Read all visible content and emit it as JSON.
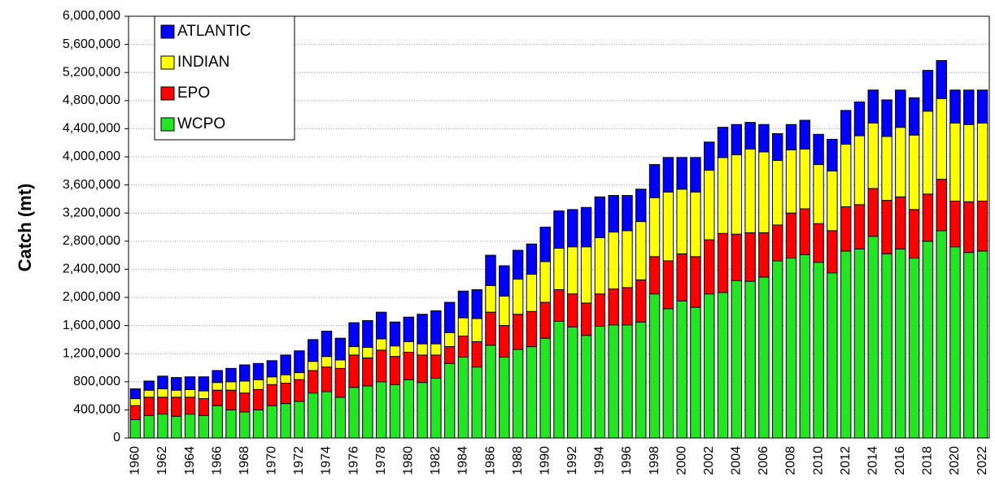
{
  "chart_data": {
    "type": "stacked_bar",
    "y_label": "Catch (mt)",
    "categories": [
      "1960",
      null,
      "1962",
      null,
      "1964",
      null,
      "1966",
      null,
      "1968",
      null,
      "1970",
      null,
      "1972",
      null,
      "1974",
      null,
      "1976",
      null,
      "1978",
      null,
      "1980",
      null,
      "1982",
      null,
      "1984",
      null,
      "1986",
      null,
      "1988",
      null,
      "1990",
      null,
      "1992",
      null,
      "1994",
      null,
      "1996",
      null,
      "1998",
      null,
      "2000",
      null,
      "2002",
      null,
      "2004",
      null,
      "2006",
      null,
      "2008",
      null,
      "2010",
      null,
      "2012",
      null,
      "2014",
      null,
      "2016",
      null,
      "2018",
      null,
      "2020",
      null,
      "2022"
    ],
    "series": [
      {
        "name": "WCPO",
        "color": "#22e622",
        "values": [
          260000,
          320000,
          340000,
          310000,
          340000,
          320000,
          460000,
          400000,
          370000,
          400000,
          460000,
          490000,
          520000,
          640000,
          660000,
          580000,
          720000,
          740000,
          800000,
          760000,
          830000,
          790000,
          850000,
          1060000,
          1150000,
          1010000,
          1320000,
          1150000,
          1260000,
          1300000,
          1420000,
          1660000,
          1580000,
          1460000,
          1590000,
          1610000,
          1610000,
          1650000,
          2050000,
          1840000,
          1950000,
          1860000,
          2050000,
          2070000,
          2240000,
          2230000,
          2290000,
          2520000,
          2560000,
          2610000,
          2500000,
          2350000,
          2660000,
          2690000,
          2870000,
          2620000,
          2690000,
          2560000,
          2800000,
          2950000,
          2720000,
          2640000,
          2660000
        ]
      },
      {
        "name": "EPO",
        "color": "#ff0000",
        "values": [
          200000,
          260000,
          240000,
          270000,
          240000,
          240000,
          220000,
          280000,
          270000,
          290000,
          300000,
          290000,
          310000,
          320000,
          350000,
          410000,
          460000,
          400000,
          450000,
          400000,
          390000,
          390000,
          330000,
          240000,
          300000,
          360000,
          470000,
          450000,
          500000,
          500000,
          510000,
          450000,
          470000,
          460000,
          460000,
          510000,
          530000,
          600000,
          530000,
          680000,
          670000,
          720000,
          770000,
          840000,
          660000,
          690000,
          630000,
          510000,
          640000,
          650000,
          550000,
          600000,
          630000,
          630000,
          680000,
          760000,
          740000,
          690000,
          670000,
          730000,
          650000,
          720000,
          710000
        ]
      },
      {
        "name": "INDIAN",
        "color": "#ffff00",
        "values": [
          100000,
          100000,
          120000,
          100000,
          110000,
          110000,
          110000,
          120000,
          170000,
          140000,
          110000,
          120000,
          100000,
          130000,
          150000,
          120000,
          120000,
          150000,
          160000,
          150000,
          150000,
          160000,
          160000,
          200000,
          260000,
          330000,
          380000,
          420000,
          500000,
          530000,
          580000,
          590000,
          670000,
          800000,
          800000,
          810000,
          810000,
          830000,
          840000,
          980000,
          920000,
          920000,
          990000,
          1080000,
          1130000,
          1190000,
          1150000,
          920000,
          900000,
          850000,
          840000,
          850000,
          890000,
          980000,
          930000,
          910000,
          990000,
          1060000,
          1180000,
          1150000,
          1110000,
          1100000,
          1110000
        ]
      },
      {
        "name": "ATLANTIC",
        "color": "#0000ff",
        "values": [
          140000,
          130000,
          180000,
          180000,
          180000,
          200000,
          170000,
          190000,
          230000,
          230000,
          230000,
          280000,
          310000,
          310000,
          360000,
          310000,
          340000,
          380000,
          380000,
          340000,
          350000,
          420000,
          470000,
          430000,
          380000,
          410000,
          430000,
          430000,
          410000,
          430000,
          490000,
          530000,
          530000,
          560000,
          580000,
          520000,
          500000,
          460000,
          470000,
          490000,
          450000,
          490000,
          400000,
          430000,
          430000,
          380000,
          390000,
          380000,
          360000,
          410000,
          430000,
          450000,
          480000,
          480000,
          470000,
          520000,
          530000,
          530000,
          580000,
          540000,
          470000,
          490000,
          470000
        ]
      }
    ],
    "ylim": [
      0,
      6000000
    ],
    "yticks": [
      0,
      {
        "value": 400000,
        "label": "400,000"
      },
      {
        "value": 800000,
        "label": "800,000"
      },
      {
        "value": 1200000,
        "label": "1,200,000"
      },
      {
        "value": 1600000,
        "label": "1,600,000"
      },
      {
        "value": 2000000,
        "label": "2,000,000"
      },
      {
        "value": 2400000,
        "label": "2,400,000"
      },
      {
        "value": 2800000,
        "label": "2,800,000"
      },
      {
        "value": 3200000,
        "label": "3,200,000"
      },
      {
        "value": 3600000,
        "label": "3,600,000"
      },
      {
        "value": 4000000,
        "label": "4,000,000"
      },
      {
        "value": 4400000,
        "label": "4,400,000"
      },
      {
        "value": 4800000,
        "label": "4,800,000"
      },
      {
        "value": 5200000,
        "label": "5,200,000"
      },
      {
        "value": 5600000,
        "label": "5,600,000"
      },
      {
        "value": 6000000,
        "label": "6,000,000"
      }
    ],
    "grid": true,
    "legend": "top-left"
  }
}
